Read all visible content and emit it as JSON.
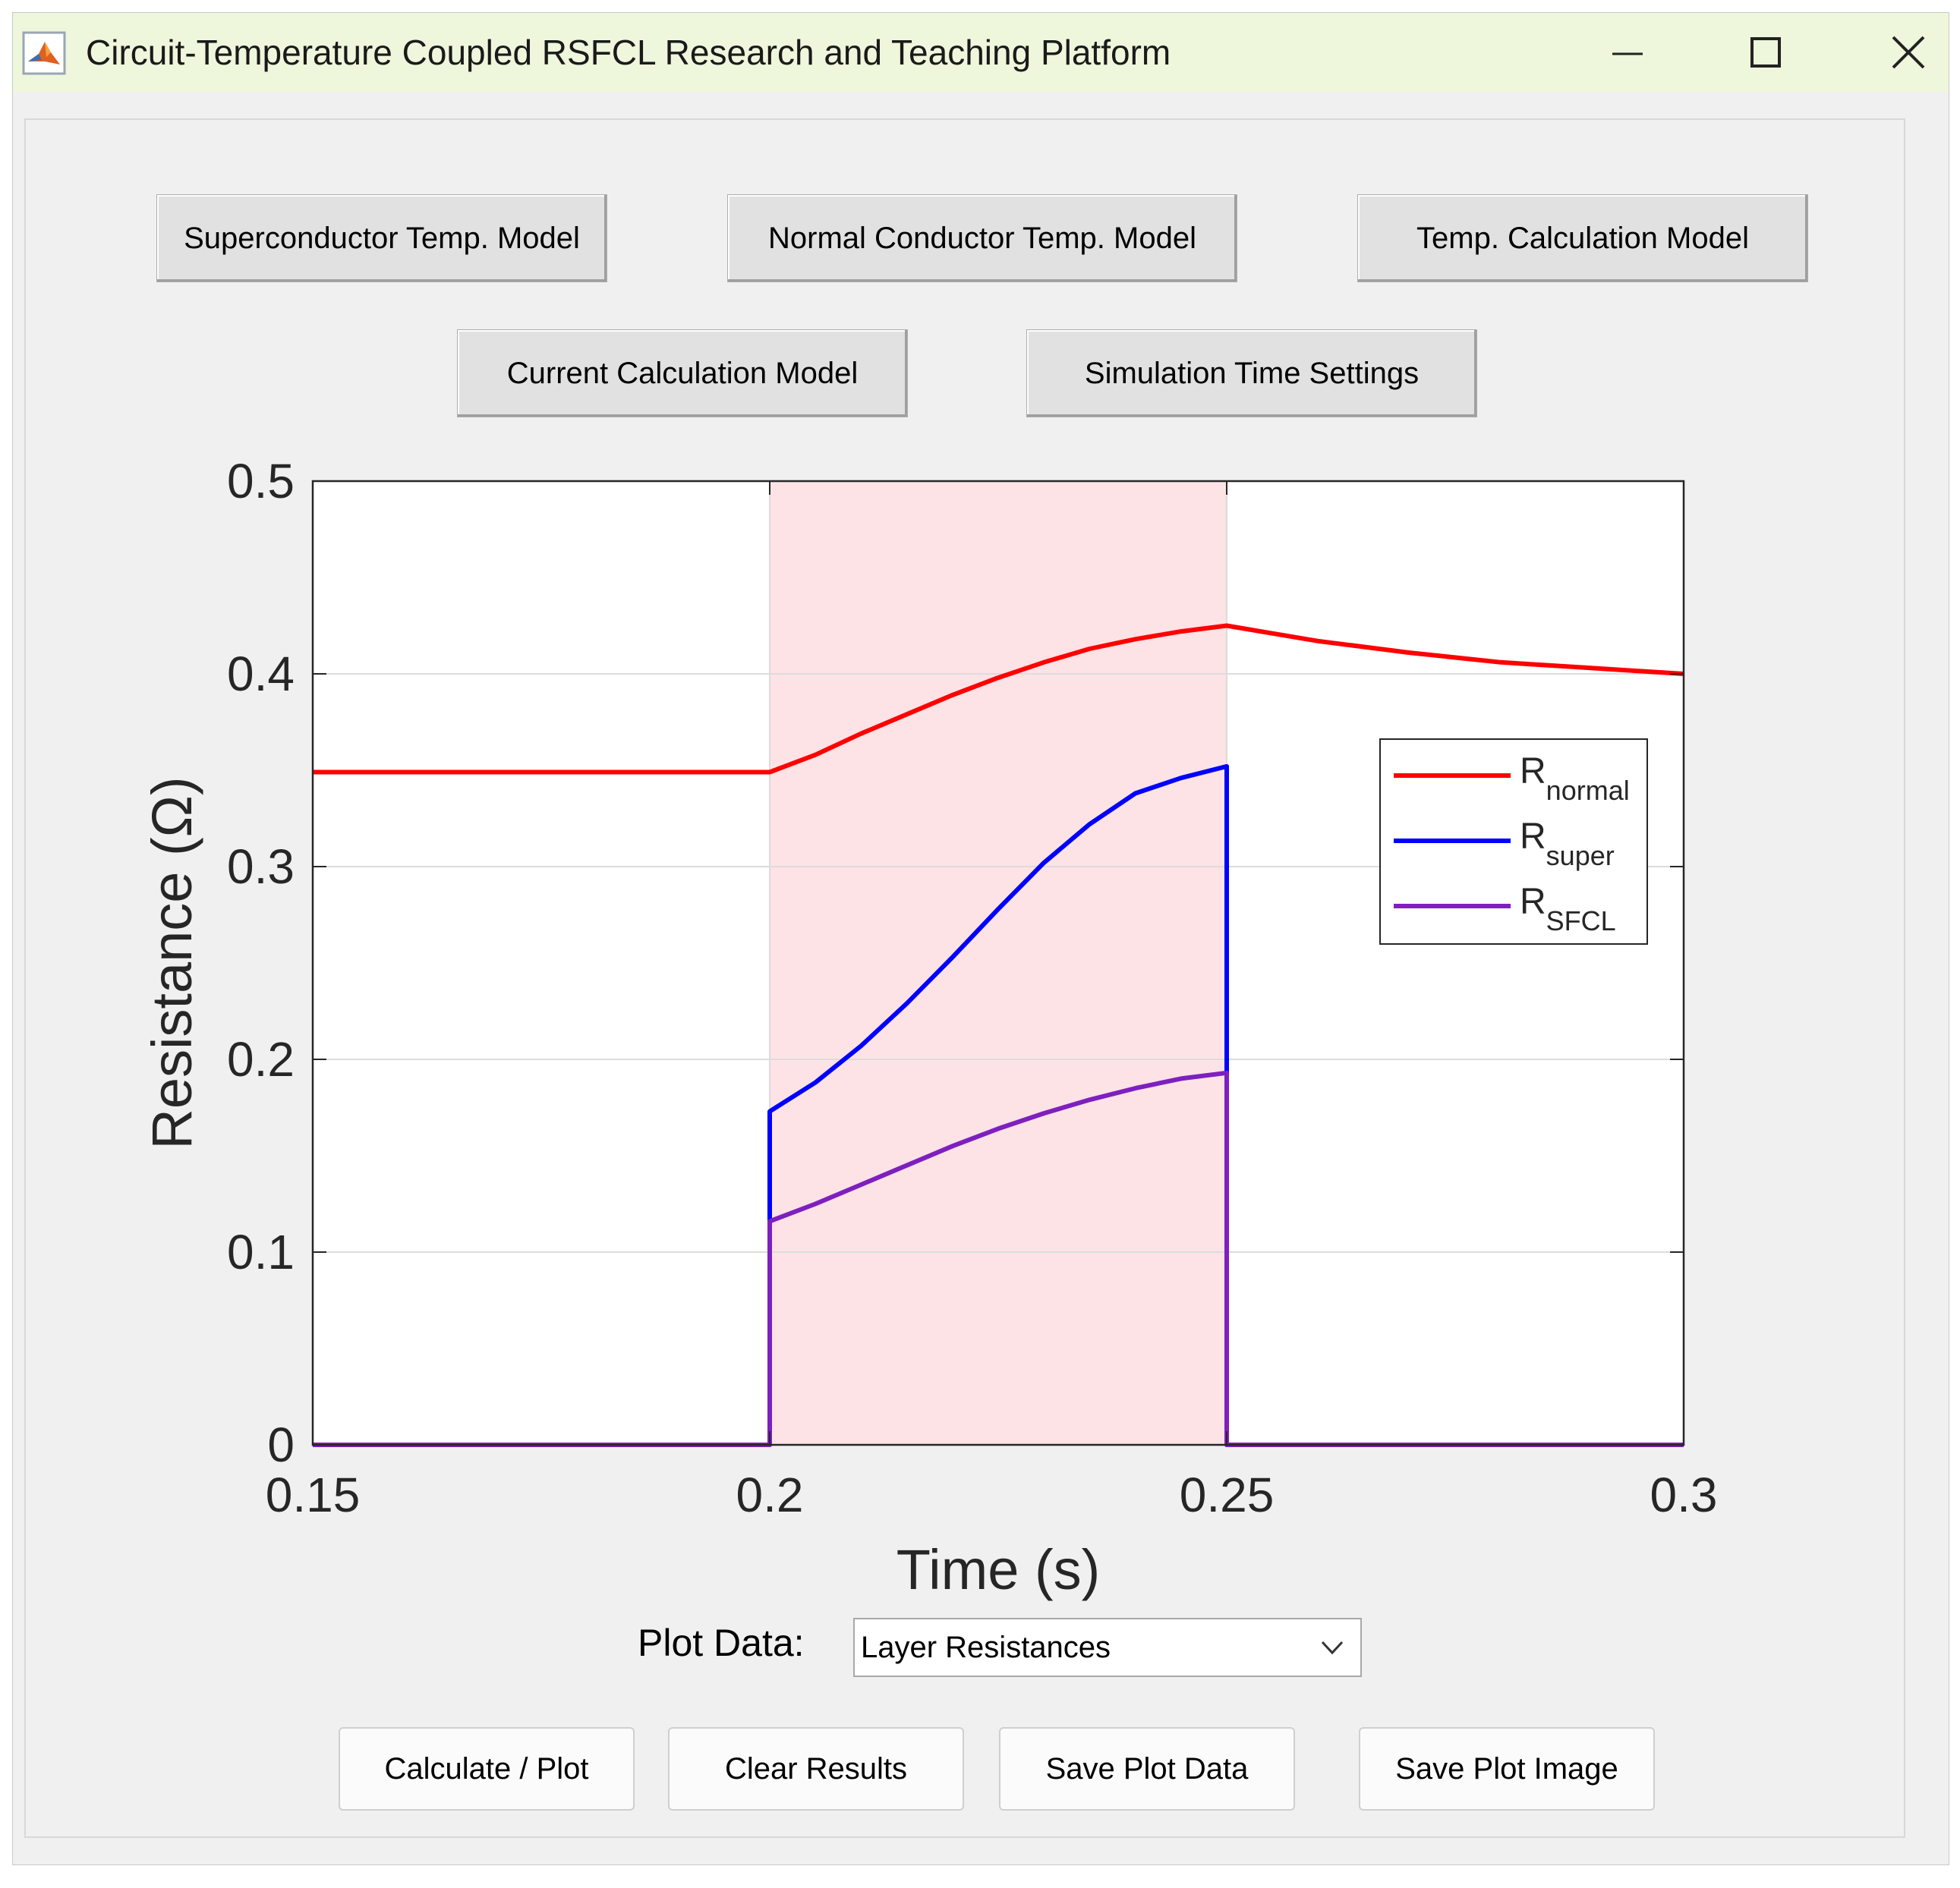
{
  "window": {
    "title": "Circuit-Temperature Coupled RSFCL Research and Teaching Platform",
    "icon": "matlab-icon",
    "controls": [
      "minimize-icon",
      "maximize-icon",
      "close-icon"
    ]
  },
  "toolbar": {
    "superconductor_temp_model": "Superconductor Temp. Model",
    "normal_conductor_temp_model": "Normal Conductor Temp. Model",
    "temp_calculation_model": "Temp. Calculation Model",
    "current_calculation_model": "Current Calculation Model",
    "simulation_time_settings": "Simulation Time Settings"
  },
  "plot_selector": {
    "label": "Plot Data:",
    "selected": "Layer Resistances"
  },
  "actions": {
    "calculate_plot": "Calculate / Plot",
    "clear_results": "Clear Results",
    "save_plot_data": "Save Plot Data",
    "save_plot_image": "Save Plot Image"
  },
  "chart_data": {
    "type": "line",
    "title": "",
    "xlabel": "Time (s)",
    "ylabel": "Resistance (Ω)",
    "xlim": [
      0.15,
      0.3
    ],
    "ylim": [
      0,
      0.5
    ],
    "xticks": [
      "0.15",
      "0.2",
      "0.25",
      "0.3"
    ],
    "yticks": [
      "0",
      "0.1",
      "0.2",
      "0.3",
      "0.4",
      "0.5"
    ],
    "grid": true,
    "shaded_region": {
      "x": [
        0.2,
        0.25
      ],
      "color": "#fde3e6"
    },
    "legend": {
      "placement": "right"
    },
    "colors": {
      "normal": "#ff0000",
      "super": "#0000ff",
      "sfcl": "#7e1fbf"
    },
    "series": [
      {
        "name": "R",
        "subscript": "normal",
        "x": [
          0.15,
          0.2,
          0.205,
          0.21,
          0.215,
          0.22,
          0.225,
          0.23,
          0.235,
          0.24,
          0.245,
          0.25,
          0.255,
          0.26,
          0.27,
          0.28,
          0.29,
          0.3
        ],
        "y": [
          0.349,
          0.349,
          0.358,
          0.369,
          0.379,
          0.389,
          0.398,
          0.406,
          0.413,
          0.418,
          0.422,
          0.425,
          0.421,
          0.417,
          0.411,
          0.406,
          0.403,
          0.4
        ]
      },
      {
        "name": "R",
        "subscript": "super",
        "x": [
          0.15,
          0.2,
          0.2,
          0.2,
          0.205,
          0.21,
          0.215,
          0.22,
          0.225,
          0.23,
          0.235,
          0.24,
          0.245,
          0.25,
          0.25,
          0.25,
          0.3
        ],
        "y": [
          0,
          0,
          0.116,
          0.173,
          0.188,
          0.207,
          0.229,
          0.253,
          0.278,
          0.302,
          0.322,
          0.338,
          0.346,
          0.352,
          0.193,
          0,
          0
        ]
      },
      {
        "name": "R",
        "subscript": "SFCL",
        "x": [
          0.15,
          0.2,
          0.2,
          0.205,
          0.21,
          0.215,
          0.22,
          0.225,
          0.23,
          0.235,
          0.24,
          0.245,
          0.25,
          0.25,
          0.3
        ],
        "y": [
          0,
          0,
          0.116,
          0.125,
          0.135,
          0.145,
          0.155,
          0.164,
          0.172,
          0.179,
          0.185,
          0.19,
          0.193,
          0,
          0
        ]
      }
    ]
  }
}
